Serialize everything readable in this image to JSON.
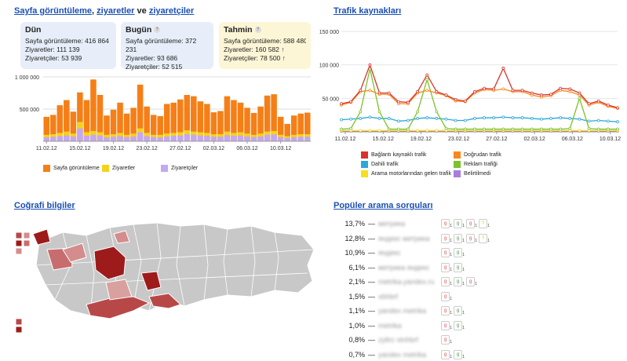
{
  "pageviews": {
    "title_a": "Sayfa görüntüleme",
    "title_sep": ",",
    "title_b": "ziyaretler",
    "title_and": "ve",
    "title_c": "ziyaretçiler",
    "cards": [
      {
        "title": "Dün",
        "has_help": false,
        "pageviews": "Sayfa görüntüleme: 416 864",
        "visits": "Ziyaretler: 111 139",
        "visitors": "Ziyaretçiler: 53 939"
      },
      {
        "title": "Bugün",
        "has_help": true,
        "pageviews": "Sayfa görüntüleme: 372 231",
        "visits": "Ziyaretler: 93 686",
        "visitors": "Ziyaretçiler: 52 515"
      },
      {
        "title": "Tahmin",
        "has_help": true,
        "pageviews": "Sayfa görüntüleme: 588 480 ↑",
        "visits": "Ziyaretler: 160 582 ↑",
        "visitors": "Ziyaretçiler: 78 500 ↑"
      }
    ],
    "legend": [
      "Sayfa görüntüleme",
      "Ziyaretler",
      "Ziyaretçiler"
    ],
    "colors": {
      "pageviews": "#f57f17",
      "visits": "#f5d21a",
      "visitors": "#c4a8f0"
    }
  },
  "traffic": {
    "title": "Trafik kaynakları",
    "legend": [
      {
        "label": "Bağlantı kaynaklı trafik",
        "color": "#d9342b"
      },
      {
        "label": "Doğrudan trafik",
        "color": "#f68a1e"
      },
      {
        "label": "Dahili trafik",
        "color": "#2aa9d9"
      },
      {
        "label": "Reklam trafiği",
        "color": "#7cc22a"
      },
      {
        "label": "Arama motorlarından gelen trafik",
        "color": "#f7df1e"
      },
      {
        "label": "Belirtilmedi",
        "color": "#a77de0"
      }
    ]
  },
  "geo": {
    "title": "Coğrafi bilgiler"
  },
  "queries": {
    "title": "Popüler arama sorguları",
    "rows": [
      {
        "pct": "13,7%",
        "text": "метрика",
        "engines": [
          "1",
          "1",
          "1",
          "1"
        ]
      },
      {
        "pct": "12,8%",
        "text": "яндекс метрика",
        "engines": [
          "1",
          "1",
          "1",
          "1"
        ]
      },
      {
        "pct": "10,9%",
        "text": "яндекс",
        "engines": [
          "1",
          "1"
        ]
      },
      {
        "pct": "6,1%",
        "text": "метрика яндекс",
        "engines": [
          "1",
          "1"
        ]
      },
      {
        "pct": "2,1%",
        "text": "metrika.yandex.ru",
        "engines": [
          "1",
          "1",
          "1"
        ]
      },
      {
        "pct": "1,5%",
        "text": "vbhbrf",
        "engines": [
          "1"
        ]
      },
      {
        "pct": "1,1%",
        "text": "yandex metrika",
        "engines": [
          "1",
          "1"
        ]
      },
      {
        "pct": "1,0%",
        "text": "metrika",
        "engines": [
          "1",
          "1"
        ]
      },
      {
        "pct": "0,8%",
        "text": "zyltrc vtnhbrf",
        "engines": [
          "1"
        ]
      },
      {
        "pct": "0,7%",
        "text": "yandex metrika",
        "engines": [
          "1",
          "1"
        ]
      }
    ]
  },
  "chart_data": [
    {
      "type": "bar",
      "title": "Sayfa görüntüleme, ziyaretler ve ziyaretçiler",
      "ytick_labels": [
        "1 000 000",
        "500 000"
      ],
      "ylim": [
        0,
        1000000
      ],
      "xtick_labels": [
        "11.02.12",
        "15.02.12",
        "19.02.12",
        "23.02.12",
        "27.02.12",
        "02.03.12",
        "06.03.12",
        "10.03.12"
      ],
      "series": [
        {
          "name": "Sayfa görüntüleme",
          "values": [
            380000,
            410000,
            560000,
            640000,
            460000,
            760000,
            640000,
            960000,
            720000,
            400000,
            490000,
            600000,
            430000,
            520000,
            880000,
            540000,
            410000,
            390000,
            580000,
            600000,
            650000,
            720000,
            700000,
            620000,
            580000,
            450000,
            470000,
            700000,
            640000,
            600000,
            520000,
            440000,
            540000,
            710000,
            730000,
            380000,
            270000,
            400000,
            430000,
            445000
          ]
        },
        {
          "name": "Ziyaretler",
          "values": [
            100000,
            110000,
            130000,
            150000,
            120000,
            300000,
            140000,
            160000,
            140000,
            100000,
            110000,
            130000,
            100000,
            120000,
            200000,
            130000,
            100000,
            100000,
            120000,
            130000,
            140000,
            170000,
            150000,
            140000,
            130000,
            110000,
            110000,
            150000,
            130000,
            140000,
            120000,
            100000,
            120000,
            150000,
            160000,
            100000,
            80000,
            100000,
            110000,
            110000
          ]
        },
        {
          "name": "Ziyaretçiler",
          "values": [
            60000,
            70000,
            80000,
            90000,
            75000,
            200000,
            85000,
            100000,
            90000,
            60000,
            70000,
            80000,
            65000,
            75000,
            140000,
            80000,
            65000,
            60000,
            75000,
            85000,
            90000,
            110000,
            100000,
            90000,
            85000,
            70000,
            70000,
            95000,
            85000,
            90000,
            75000,
            65000,
            75000,
            100000,
            105000,
            65000,
            50000,
            65000,
            70000,
            70000
          ]
        }
      ]
    },
    {
      "type": "line",
      "title": "Trafik kaynakları",
      "ytick_labels": [
        "150 000",
        "100 000",
        "50 000"
      ],
      "ylim": [
        0,
        150000
      ],
      "xtick_labels": [
        "11.02.12",
        "15.02.12",
        "19.02.12",
        "23.02.12",
        "27.02.12",
        "02.03.12",
        "06.03.12",
        "10.03.12"
      ],
      "series": [
        {
          "name": "Bağlantı kaynaklı trafik",
          "values": [
            42000,
            45000,
            62000,
            100000,
            58000,
            58000,
            45000,
            44000,
            60000,
            85000,
            60000,
            55000,
            48000,
            46000,
            60000,
            65000,
            64000,
            95000,
            62000,
            62000,
            58000,
            55000,
            56000,
            65000,
            64000,
            58000,
            42000,
            46000,
            40000,
            36000
          ]
        },
        {
          "name": "Doğrudan trafik",
          "values": [
            40000,
            44000,
            60000,
            62000,
            56000,
            56000,
            42000,
            42000,
            58000,
            62000,
            58000,
            54000,
            46000,
            45000,
            58000,
            63000,
            62000,
            64000,
            60000,
            60000,
            55000,
            52000,
            54000,
            62000,
            60000,
            55000,
            40000,
            44000,
            38000,
            35000
          ]
        },
        {
          "name": "Dahili trafik",
          "values": [
            18000,
            19000,
            20000,
            22000,
            20000,
            20000,
            16000,
            17000,
            20000,
            21000,
            20000,
            19000,
            17000,
            17000,
            20000,
            21000,
            21000,
            22000,
            21000,
            21000,
            20000,
            19000,
            20000,
            21000,
            20000,
            19000,
            16000,
            17000,
            16000,
            15000
          ]
        },
        {
          "name": "Reklam trafiği",
          "values": [
            4000,
            5000,
            30000,
            94000,
            30000,
            4000,
            4000,
            4000,
            30000,
            78000,
            30000,
            5000,
            4000,
            4000,
            4000,
            4000,
            4000,
            4000,
            4000,
            4000,
            4000,
            4000,
            4000,
            4000,
            5000,
            50000,
            5000,
            4000,
            4000,
            4000
          ]
        },
        {
          "name": "Arama motorlarından gelen trafik",
          "values": [
            2000,
            2000,
            2000,
            2000,
            2000,
            2000,
            2000,
            2000,
            2000,
            2000,
            2000,
            2000,
            2000,
            2000,
            2000,
            2000,
            2000,
            2000,
            2000,
            2000,
            2000,
            2000,
            2000,
            2000,
            2000,
            2000,
            2000,
            2000,
            2000,
            2000
          ]
        },
        {
          "name": "Belirtilmedi",
          "values": [
            1000,
            1000,
            1000,
            1000,
            1000,
            1000,
            1000,
            1000,
            1000,
            1000,
            1000,
            1000,
            1000,
            1000,
            1000,
            1000,
            1000,
            1000,
            1000,
            1000,
            1000,
            1000,
            1000,
            1000,
            1000,
            1000,
            1000,
            1000,
            1000,
            1000
          ]
        }
      ]
    }
  ]
}
